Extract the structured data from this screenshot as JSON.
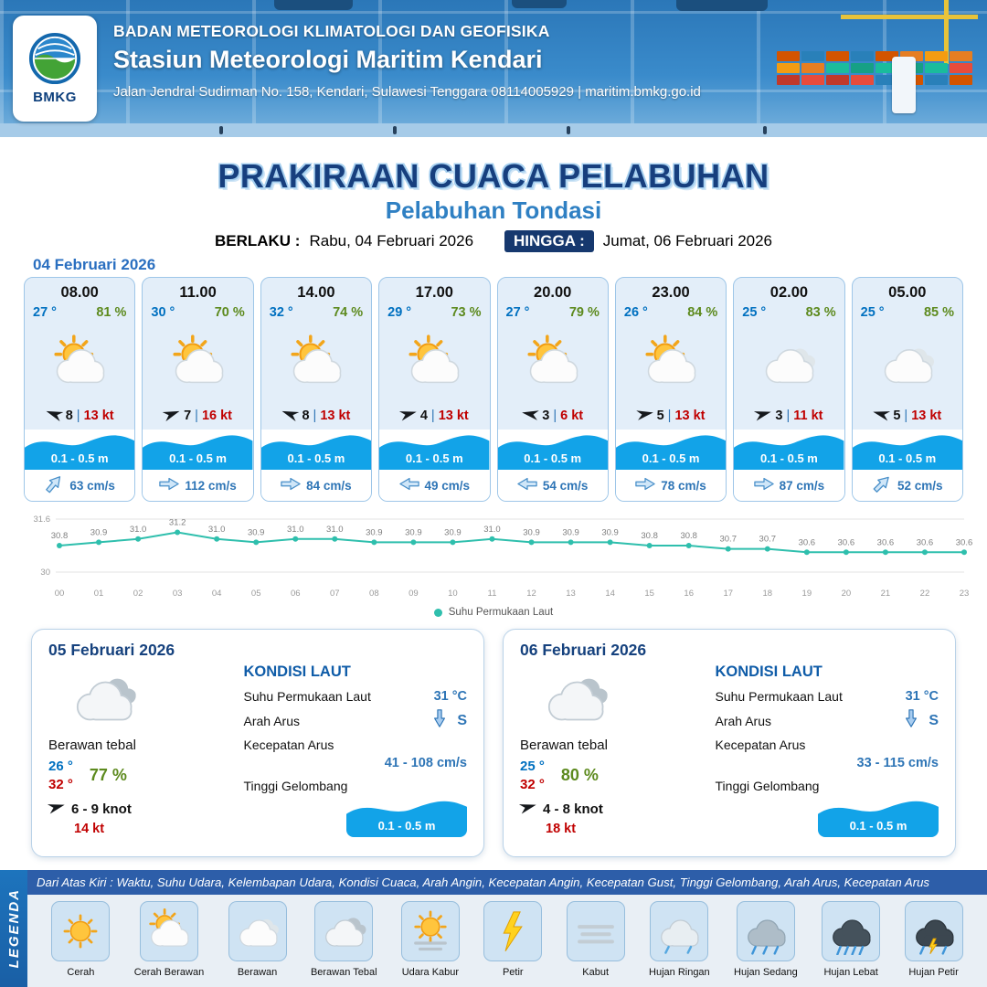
{
  "colors": {
    "temp_blue": "#0070c0",
    "humidity_green": "#5d8a1e",
    "gust_red": "#c00000",
    "wave_blue": "#12a3e8",
    "title_navy": "#173f7e",
    "subtitle_blue": "#2f80c3",
    "current_blue": "#2e75b6"
  },
  "header": {
    "org": "BADAN METEOROLOGI KLIMATOLOGI DAN GEOFISIKA",
    "station": "Stasiun Meteorologi Maritim Kendari",
    "address": "Jalan Jendral Sudirman No. 158, Kendari, Sulawesi Tenggara  08114005929 | maritim.bmkg.go.id",
    "logo_label": "BMKG"
  },
  "title": {
    "main": "PRAKIRAAN CUACA PELABUHAN",
    "subtitle": "Pelabuhan Tondasi",
    "berlaku_label": "BERLAKU :",
    "berlaku_value": "Rabu, 04 Februari 2026",
    "hingga_label": "HINGGA :",
    "hingga_value": "Jumat, 06 Februari 2026"
  },
  "forecast": {
    "date": "04 Februari 2026",
    "cards": [
      {
        "time": "08.00",
        "temp": "27 °",
        "rh": "81 %",
        "icon": "cerah-berawan",
        "wind_dir_deg": 200,
        "wind_speed": "8",
        "gust": "13 kt",
        "wave": "0.1 - 0.5 m",
        "current_dir_deg": -50,
        "current": "63 cm/s"
      },
      {
        "time": "11.00",
        "temp": "30 °",
        "rh": "70 %",
        "icon": "cerah-berawan",
        "wind_dir_deg": -20,
        "wind_speed": "7",
        "gust": "16 kt",
        "wave": "0.1 - 0.5 m",
        "current_dir_deg": 0,
        "current": "112 cm/s"
      },
      {
        "time": "14.00",
        "temp": "32 °",
        "rh": "74 %",
        "icon": "cerah-berawan",
        "wind_dir_deg": 200,
        "wind_speed": "8",
        "gust": "13 kt",
        "wave": "0.1 - 0.5 m",
        "current_dir_deg": 0,
        "current": "84 cm/s"
      },
      {
        "time": "17.00",
        "temp": "29 °",
        "rh": "73 %",
        "icon": "cerah-berawan",
        "wind_dir_deg": -15,
        "wind_speed": "4",
        "gust": "13 kt",
        "wave": "0.1 - 0.5 m",
        "current_dir_deg": 180,
        "current": "49 cm/s"
      },
      {
        "time": "20.00",
        "temp": "27 °",
        "rh": "79 %",
        "icon": "cerah-berawan",
        "wind_dir_deg": 190,
        "wind_speed": "3",
        "gust": "6 kt",
        "wave": "0.1 - 0.5 m",
        "current_dir_deg": 180,
        "current": "54 cm/s"
      },
      {
        "time": "23.00",
        "temp": "26 °",
        "rh": "84 %",
        "icon": "cerah-berawan",
        "wind_dir_deg": -10,
        "wind_speed": "5",
        "gust": "13 kt",
        "wave": "0.1 - 0.5 m",
        "current_dir_deg": 0,
        "current": "78 cm/s"
      },
      {
        "time": "02.00",
        "temp": "25 °",
        "rh": "83 %",
        "icon": "berawan",
        "wind_dir_deg": -15,
        "wind_speed": "3",
        "gust": "11 kt",
        "wave": "0.1 - 0.5 m",
        "current_dir_deg": 0,
        "current": "87 cm/s"
      },
      {
        "time": "05.00",
        "temp": "25 °",
        "rh": "85 %",
        "icon": "berawan",
        "wind_dir_deg": 195,
        "wind_speed": "5",
        "gust": "13 kt",
        "wave": "0.1 - 0.5 m",
        "current_dir_deg": -45,
        "current": "52 cm/s"
      }
    ]
  },
  "chart_data": {
    "type": "line",
    "title": "",
    "x": [
      "00",
      "01",
      "02",
      "03",
      "04",
      "05",
      "06",
      "07",
      "08",
      "09",
      "10",
      "11",
      "12",
      "13",
      "14",
      "15",
      "16",
      "17",
      "18",
      "19",
      "20",
      "21",
      "22",
      "23"
    ],
    "series": [
      {
        "name": "Suhu Permukaan Laut",
        "values": [
          30.8,
          30.9,
          31.0,
          31.2,
          31.0,
          30.9,
          31.0,
          31.0,
          30.9,
          30.9,
          30.9,
          31.0,
          30.9,
          30.9,
          30.9,
          30.8,
          30.8,
          30.7,
          30.7,
          30.6,
          30.6,
          30.6,
          30.6,
          30.6
        ]
      }
    ],
    "ylim": [
      30,
      31.6
    ],
    "yticks": [
      31.6,
      30
    ],
    "grid": true,
    "legend_position": "bottom",
    "line_color": "#2fbfad"
  },
  "sea_labels": {
    "title": "KONDISI LAUT",
    "sst": "Suhu Permukaan Laut",
    "arah": "Arah Arus",
    "kec": "Kecepatan Arus",
    "wave": "Tinggi Gelombang"
  },
  "days": [
    {
      "date": "05 Februari 2026",
      "icon": "berawan-tebal",
      "condition": "Berawan tebal",
      "temp_min": "26 °",
      "temp_max": "32 °",
      "rh": "77 %",
      "wind": "6  - 9 knot",
      "gust": "14 kt",
      "sea": {
        "sst": "31 °C",
        "arah": "S",
        "kec": "41 - 108 cm/s",
        "wave": "0.1 - 0.5 m"
      }
    },
    {
      "date": "06 Februari 2026",
      "icon": "berawan-tebal",
      "condition": "Berawan tebal",
      "temp_min": "25 °",
      "temp_max": "32 °",
      "rh": "80 %",
      "wind": "4  - 8 knot",
      "gust": "18 kt",
      "sea": {
        "sst": "31 °C",
        "arah": "S",
        "kec": "33 - 115 cm/s",
        "wave": "0.1 - 0.5 m"
      }
    }
  ],
  "legend": {
    "title": "LEGENDA",
    "note": "Dari Atas Kiri : Waktu, Suhu Udara, Kelembapan Udara, Kondisi Cuaca, Arah Angin, Kecepatan Angin, Kecepatan Gust, Tinggi Gelombang, Arah Arus, Kecepatan Arus",
    "items": [
      {
        "label": "Cerah",
        "icon": "cerah"
      },
      {
        "label": "Cerah Berawan",
        "icon": "cerah-berawan"
      },
      {
        "label": "Berawan",
        "icon": "berawan"
      },
      {
        "label": "Berawan Tebal",
        "icon": "berawan-tebal"
      },
      {
        "label": "Udara Kabur",
        "icon": "udara-kabur"
      },
      {
        "label": "Petir",
        "icon": "petir"
      },
      {
        "label": "Kabut",
        "icon": "kabut"
      },
      {
        "label": "Hujan Ringan",
        "icon": "hujan-ringan"
      },
      {
        "label": "Hujan Sedang",
        "icon": "hujan-sedang"
      },
      {
        "label": "Hujan Lebat",
        "icon": "hujan-lebat"
      },
      {
        "label": "Hujan Petir",
        "icon": "hujan-petir"
      }
    ]
  }
}
